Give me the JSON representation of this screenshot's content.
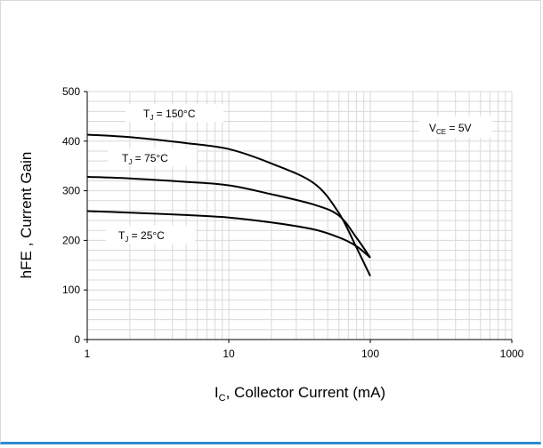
{
  "chart_data": {
    "type": "line",
    "title": "",
    "xlabel": {
      "main": "I",
      "sub": "C",
      "rest": ", Collector Current (mA)"
    },
    "ylabel": "hFE , Current Gain",
    "x_scale": "log",
    "xlim": [
      1,
      1000
    ],
    "ylim": [
      0,
      500
    ],
    "x_ticks": [
      1,
      10,
      100,
      1000
    ],
    "x_tick_labels": [
      "1",
      "10",
      "100",
      "1000"
    ],
    "y_ticks": [
      0,
      100,
      200,
      300,
      400,
      500
    ],
    "y_tick_labels": [
      "0",
      "100",
      "200",
      "300",
      "400",
      "500"
    ],
    "grid": true,
    "annotation": {
      "main": "V",
      "sub": "CE",
      "rest": " = 5V"
    },
    "series": [
      {
        "name": "T_J = 150°C",
        "label": {
          "main": "T",
          "sub": "J",
          "rest": " = 150°C"
        },
        "x": [
          1,
          2,
          5,
          10,
          20,
          40,
          60,
          80,
          100
        ],
        "y": [
          413,
          408,
          396,
          384,
          355,
          315,
          255,
          185,
          128
        ]
      },
      {
        "name": "T_J = 75°C",
        "label": {
          "main": "T",
          "sub": "J",
          "rest": " = 75°C"
        },
        "x": [
          1,
          2,
          5,
          10,
          20,
          40,
          60,
          80,
          100
        ],
        "y": [
          328,
          325,
          318,
          311,
          293,
          272,
          250,
          205,
          165
        ]
      },
      {
        "name": "T_J = 25°C",
        "label": {
          "main": "T",
          "sub": "J",
          "rest": " = 25°C"
        },
        "x": [
          1,
          2,
          5,
          10,
          20,
          40,
          60,
          80,
          100
        ],
        "y": [
          259,
          256,
          251,
          246,
          236,
          222,
          206,
          188,
          165
        ]
      }
    ],
    "colors": {
      "line": "#000000",
      "grid": "#d9d9d9",
      "frame_bottom": "#2e8bd0"
    }
  }
}
